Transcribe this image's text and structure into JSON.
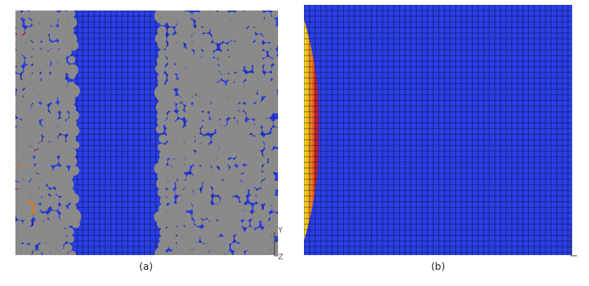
{
  "captions": {
    "a": "(a)",
    "b": "(b)"
  },
  "axis_labels": {
    "a_y": "Y",
    "a_z": "Z"
  },
  "colors": {
    "mesh_blue": "#2a3fe6",
    "grid_line": "#0b0f3a",
    "particle_gray": "#8a8a8a",
    "heat_yellow": "#f4e21a",
    "heat_orange": "#f08a1a",
    "heat_red": "#d31a1a",
    "heat_purple": "#8a1f7a"
  },
  "icons": {
    "axis_triad": "axis-triad-icon"
  }
}
